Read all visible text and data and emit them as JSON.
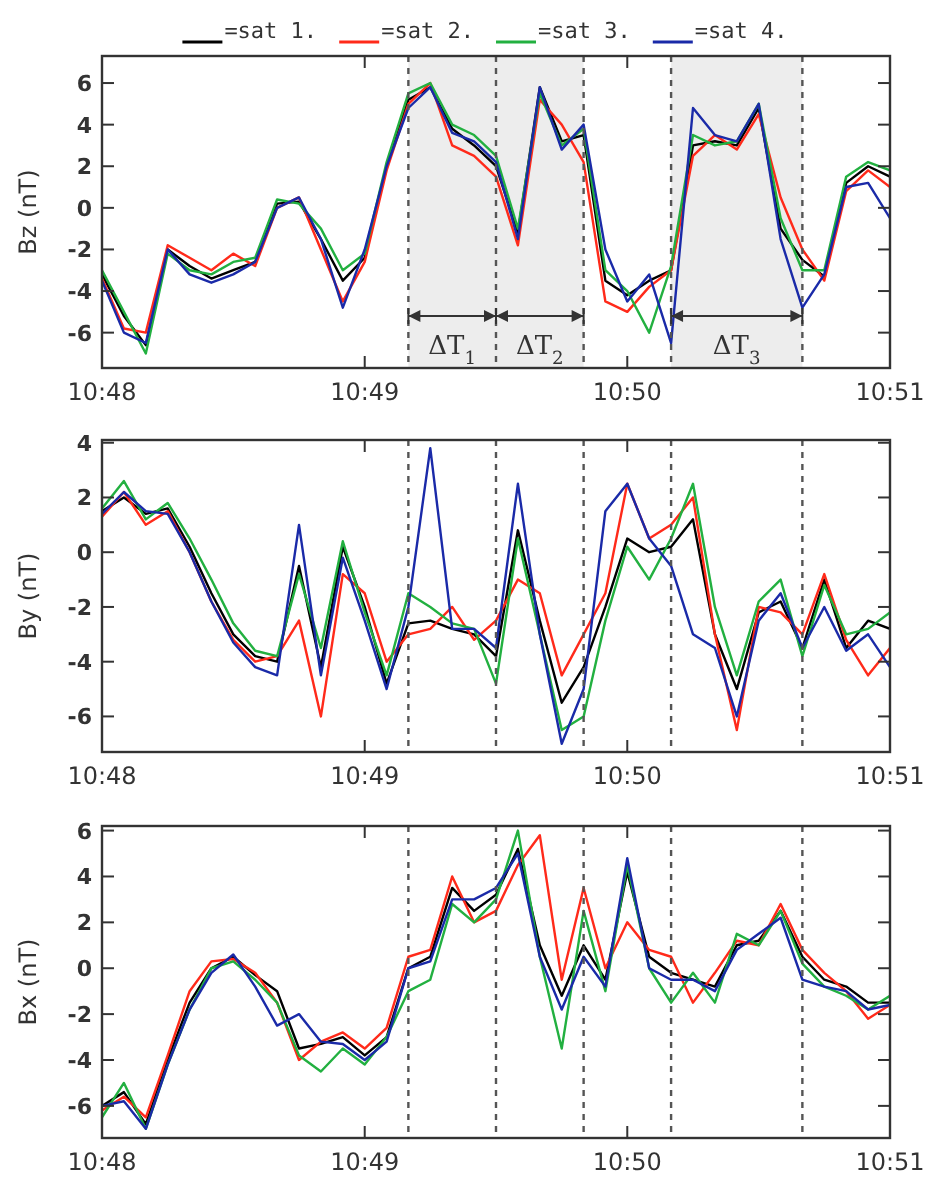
{
  "chart_data": [
    {
      "type": "line",
      "ylabel": "Bz (nT)",
      "legend": "top",
      "x": [
        10.8,
        10.80139,
        10.80278,
        10.80417,
        10.80556,
        10.80694,
        10.80833,
        10.80972,
        10.81111,
        10.8125,
        10.81389,
        10.81528,
        10.81667,
        10.81806,
        10.81944,
        10.82083,
        10.82222,
        10.82361,
        10.825,
        10.82639,
        10.82778,
        10.82917,
        10.83056,
        10.83194,
        10.83333,
        10.83472,
        10.83611,
        10.8375,
        10.83889,
        10.84028,
        10.84167,
        10.84306,
        10.84444,
        10.84583,
        10.84722,
        10.84861,
        10.85
      ],
      "xlim": [
        10.8,
        10.85
      ],
      "xticks": [
        {
          "value": 10.8,
          "label": "10:48"
        },
        {
          "value": 10.81667,
          "label": "10:49"
        },
        {
          "value": 10.83333,
          "label": "10:50"
        },
        {
          "value": 10.85,
          "label": "10:51"
        }
      ],
      "ylim": [
        -7.7,
        7.3
      ],
      "yticks": [
        -6,
        -4,
        -2,
        0,
        2,
        4,
        6
      ],
      "series": [
        {
          "name": "=sat 1.",
          "color": "#000000",
          "values": [
            -3.2,
            -5.2,
            -6.6,
            -2.0,
            -2.8,
            -3.4,
            -3.0,
            -2.6,
            0.2,
            0.3,
            -1.5,
            -3.5,
            -2.4,
            2.0,
            5.2,
            5.8,
            3.8,
            3.0,
            2.0,
            -1.2,
            5.8,
            3.2,
            3.5,
            -3.5,
            -4.2,
            -3.5,
            -3.0,
            3.0,
            3.2,
            3.0,
            4.8,
            -1.0,
            -2.5,
            -3.3,
            1.2,
            2.0,
            1.5
          ]
        },
        {
          "name": "=sat 2.",
          "color": "#ff2a1a",
          "values": [
            -3.4,
            -5.8,
            -6.0,
            -1.8,
            -2.4,
            -3.0,
            -2.2,
            -2.8,
            0.0,
            0.5,
            -2.0,
            -4.5,
            -2.6,
            1.8,
            5.0,
            6.0,
            3.0,
            2.5,
            1.5,
            -1.8,
            5.2,
            4.0,
            2.2,
            -4.5,
            -5.0,
            -3.8,
            -3.0,
            2.5,
            3.5,
            2.8,
            4.5,
            0.5,
            -2.0,
            -3.5,
            0.8,
            1.8,
            1.0
          ]
        },
        {
          "name": "=sat 3.",
          "color": "#22b040",
          "values": [
            -3.0,
            -5.0,
            -7.0,
            -2.2,
            -3.0,
            -3.2,
            -2.6,
            -2.4,
            0.4,
            0.2,
            -1.0,
            -3.0,
            -2.2,
            2.2,
            5.5,
            6.0,
            4.0,
            3.5,
            2.5,
            -1.0,
            5.5,
            3.0,
            3.8,
            -3.0,
            -4.0,
            -6.0,
            -2.8,
            3.5,
            3.0,
            3.2,
            5.0,
            -0.5,
            -3.0,
            -3.0,
            1.5,
            2.2,
            1.8
          ]
        },
        {
          "name": "=sat 4.",
          "color": "#1a2aa8",
          "values": [
            -3.5,
            -6.0,
            -6.5,
            -2.0,
            -3.2,
            -3.6,
            -3.2,
            -2.6,
            0.0,
            0.5,
            -1.5,
            -4.8,
            -2.0,
            2.0,
            4.8,
            5.8,
            3.6,
            3.2,
            2.2,
            -1.5,
            5.8,
            2.8,
            4.0,
            -2.0,
            -4.5,
            -3.2,
            -6.5,
            4.8,
            3.5,
            3.2,
            5.0,
            -1.5,
            -4.8,
            -3.2,
            1.0,
            1.2,
            -0.5
          ]
        }
      ],
      "ref_lines": [
        {
          "axis": "x",
          "value": 10.81944,
          "color": "#555555",
          "line_style": "dashed"
        },
        {
          "axis": "x",
          "value": 10.825,
          "color": "#555555",
          "line_style": "dashed"
        },
        {
          "axis": "x",
          "value": 10.83056,
          "color": "#555555",
          "line_style": "dashed"
        },
        {
          "axis": "x",
          "value": 10.83611,
          "color": "#555555",
          "line_style": "dashed"
        },
        {
          "axis": "x",
          "value": 10.84444,
          "color": "#555555",
          "line_style": "dashed"
        }
      ],
      "bands": [
        {
          "axis": "x",
          "from": 10.81944,
          "to": 10.825,
          "label": "ΔT$_{1}$",
          "color": "#ededed"
        },
        {
          "axis": "x",
          "from": 10.825,
          "to": 10.83056,
          "label": "ΔT$_{2}$",
          "color": "#ededed"
        },
        {
          "axis": "x",
          "from": 10.83611,
          "to": 10.84444,
          "label": "ΔT$_{3}$",
          "color": "#ededed"
        }
      ]
    },
    {
      "type": "line",
      "ylabel": "By (nT)",
      "x": [
        10.8,
        10.80139,
        10.80278,
        10.80417,
        10.80556,
        10.80694,
        10.80833,
        10.80972,
        10.81111,
        10.8125,
        10.81389,
        10.81528,
        10.81667,
        10.81806,
        10.81944,
        10.82083,
        10.82222,
        10.82361,
        10.825,
        10.82639,
        10.82778,
        10.82917,
        10.83056,
        10.83194,
        10.83333,
        10.83472,
        10.83611,
        10.8375,
        10.83889,
        10.84028,
        10.84167,
        10.84306,
        10.84444,
        10.84583,
        10.84722,
        10.84861,
        10.85
      ],
      "xlim": [
        10.8,
        10.85
      ],
      "xticks": [
        {
          "value": 10.8,
          "label": "10:48"
        },
        {
          "value": 10.81667,
          "label": "10:49"
        },
        {
          "value": 10.83333,
          "label": "10:50"
        },
        {
          "value": 10.85,
          "label": "10:51"
        }
      ],
      "ylim": [
        -7.3,
        4.1
      ],
      "yticks": [
        -6,
        -4,
        -2,
        0,
        2,
        4
      ],
      "series": [
        {
          "color": "#000000",
          "values": [
            1.5,
            2.0,
            1.4,
            1.6,
            0.2,
            -1.5,
            -3.0,
            -3.8,
            -4.0,
            -0.5,
            -4.2,
            0.2,
            -2.0,
            -4.8,
            -2.6,
            -2.5,
            -2.8,
            -3.0,
            -3.8,
            0.8,
            -2.5,
            -5.5,
            -4.2,
            -2.0,
            0.5,
            0.0,
            0.2,
            1.2,
            -3.0,
            -5.0,
            -2.2,
            -1.8,
            -3.5,
            -1.0,
            -3.5,
            -2.5,
            -2.8
          ]
        },
        {
          "color": "#ff2a1a",
          "values": [
            1.3,
            2.2,
            1.0,
            1.5,
            0.0,
            -1.8,
            -3.2,
            -4.0,
            -3.8,
            -2.5,
            -6.0,
            -0.8,
            -1.5,
            -4.0,
            -3.0,
            -2.8,
            -2.0,
            -3.2,
            -2.5,
            -1.0,
            -1.5,
            -4.5,
            -3.0,
            -1.5,
            2.5,
            0.5,
            1.0,
            2.0,
            -3.0,
            -6.5,
            -2.0,
            -2.2,
            -3.0,
            -0.8,
            -3.2,
            -4.5,
            -3.5
          ]
        },
        {
          "color": "#22b040",
          "values": [
            1.6,
            2.6,
            1.2,
            1.8,
            0.5,
            -1.0,
            -2.6,
            -3.6,
            -3.8,
            -0.8,
            -3.5,
            0.4,
            -2.2,
            -4.5,
            -1.5,
            -2.0,
            -2.6,
            -2.8,
            -4.8,
            0.5,
            -3.0,
            -6.5,
            -6.0,
            -2.5,
            0.2,
            -1.0,
            0.5,
            2.5,
            -2.0,
            -4.5,
            -1.8,
            -1.0,
            -3.8,
            -1.2,
            -3.0,
            -2.8,
            -2.2
          ]
        },
        {
          "color": "#1a2aa8",
          "values": [
            1.4,
            2.2,
            1.5,
            1.4,
            0.0,
            -1.8,
            -3.3,
            -4.2,
            -4.5,
            1.0,
            -4.5,
            -0.2,
            -2.5,
            -5.0,
            -2.0,
            3.8,
            -2.8,
            -2.8,
            -3.5,
            2.5,
            -3.0,
            -7.0,
            -5.0,
            1.5,
            2.5,
            0.5,
            -0.5,
            -3.0,
            -3.5,
            -6.0,
            -2.5,
            -1.5,
            -3.5,
            -2.0,
            -3.6,
            -3.0,
            -4.2
          ]
        }
      ],
      "ref_lines": [
        {
          "axis": "x",
          "value": 10.81944,
          "color": "#555555",
          "line_style": "dashed"
        },
        {
          "axis": "x",
          "value": 10.825,
          "color": "#555555",
          "line_style": "dashed"
        },
        {
          "axis": "x",
          "value": 10.83056,
          "color": "#555555",
          "line_style": "dashed"
        },
        {
          "axis": "x",
          "value": 10.83611,
          "color": "#555555",
          "line_style": "dashed"
        },
        {
          "axis": "x",
          "value": 10.84444,
          "color": "#555555",
          "line_style": "dashed"
        }
      ]
    },
    {
      "type": "line",
      "ylabel": "Bx (nT)",
      "x": [
        10.8,
        10.80139,
        10.80278,
        10.80417,
        10.80556,
        10.80694,
        10.80833,
        10.80972,
        10.81111,
        10.8125,
        10.81389,
        10.81528,
        10.81667,
        10.81806,
        10.81944,
        10.82083,
        10.82222,
        10.82361,
        10.825,
        10.82639,
        10.82778,
        10.82917,
        10.83056,
        10.83194,
        10.83333,
        10.83472,
        10.83611,
        10.8375,
        10.83889,
        10.84028,
        10.84167,
        10.84306,
        10.84444,
        10.84583,
        10.84722,
        10.84861,
        10.85
      ],
      "xlim": [
        10.8,
        10.85
      ],
      "xticks": [
        {
          "value": 10.8,
          "label": "10:48"
        },
        {
          "value": 10.81667,
          "label": "10:49"
        },
        {
          "value": 10.83333,
          "label": "10:50"
        },
        {
          "value": 10.85,
          "label": "10:51"
        }
      ],
      "ylim": [
        -7.4,
        6.2
      ],
      "yticks": [
        -6,
        -4,
        -2,
        0,
        2,
        4,
        6
      ],
      "series": [
        {
          "color": "#000000",
          "values": [
            -6.0,
            -5.4,
            -6.8,
            -4.0,
            -1.5,
            0.0,
            0.5,
            -0.3,
            -1.0,
            -3.5,
            -3.3,
            -3.0,
            -3.8,
            -3.0,
            0.0,
            0.5,
            3.5,
            2.5,
            3.2,
            5.2,
            1.0,
            -1.2,
            1.0,
            -0.5,
            4.2,
            0.5,
            -0.2,
            -0.5,
            -0.8,
            1.0,
            1.2,
            2.5,
            0.5,
            -0.5,
            -0.8,
            -1.5,
            -1.5
          ]
        },
        {
          "color": "#ff2a1a",
          "values": [
            -6.2,
            -5.6,
            -6.5,
            -3.8,
            -1.0,
            0.3,
            0.4,
            -0.2,
            -1.5,
            -4.0,
            -3.2,
            -2.8,
            -3.5,
            -2.6,
            0.5,
            0.8,
            4.0,
            2.0,
            2.5,
            4.5,
            5.8,
            -0.5,
            3.5,
            0.0,
            2.0,
            0.8,
            0.5,
            -1.5,
            -0.2,
            1.2,
            1.0,
            2.8,
            0.8,
            -0.2,
            -1.0,
            -2.2,
            -1.6
          ]
        },
        {
          "color": "#22b040",
          "values": [
            -6.5,
            -5.0,
            -7.0,
            -4.2,
            -1.8,
            0.0,
            0.3,
            -0.5,
            -1.5,
            -3.8,
            -4.5,
            -3.5,
            -4.2,
            -3.0,
            -1.0,
            -0.5,
            2.8,
            2.0,
            3.0,
            6.0,
            0.5,
            -3.5,
            2.5,
            -1.0,
            4.5,
            0.0,
            -1.5,
            -0.2,
            -1.5,
            1.5,
            1.0,
            2.5,
            0.2,
            -0.8,
            -1.2,
            -1.8,
            -1.2
          ]
        },
        {
          "color": "#1a2aa8",
          "values": [
            -6.0,
            -5.8,
            -7.0,
            -4.2,
            -1.8,
            -0.2,
            0.6,
            -0.8,
            -2.5,
            -2.0,
            -3.2,
            -3.3,
            -4.0,
            -3.2,
            0.0,
            0.3,
            3.0,
            3.0,
            3.5,
            5.0,
            0.5,
            -1.8,
            0.5,
            -0.8,
            4.8,
            0.0,
            -0.5,
            -0.5,
            -1.0,
            0.8,
            1.5,
            2.2,
            -0.5,
            -0.8,
            -1.0,
            -1.8,
            -1.6
          ]
        }
      ],
      "ref_lines": [
        {
          "axis": "x",
          "value": 10.81944,
          "color": "#555555",
          "line_style": "dashed"
        },
        {
          "axis": "x",
          "value": 10.825,
          "color": "#555555",
          "line_style": "dashed"
        },
        {
          "axis": "x",
          "value": 10.83056,
          "color": "#555555",
          "line_style": "dashed"
        },
        {
          "axis": "x",
          "value": 10.83611,
          "color": "#555555",
          "line_style": "dashed"
        },
        {
          "axis": "x",
          "value": 10.84444,
          "color": "#555555",
          "line_style": "dashed"
        }
      ]
    }
  ]
}
